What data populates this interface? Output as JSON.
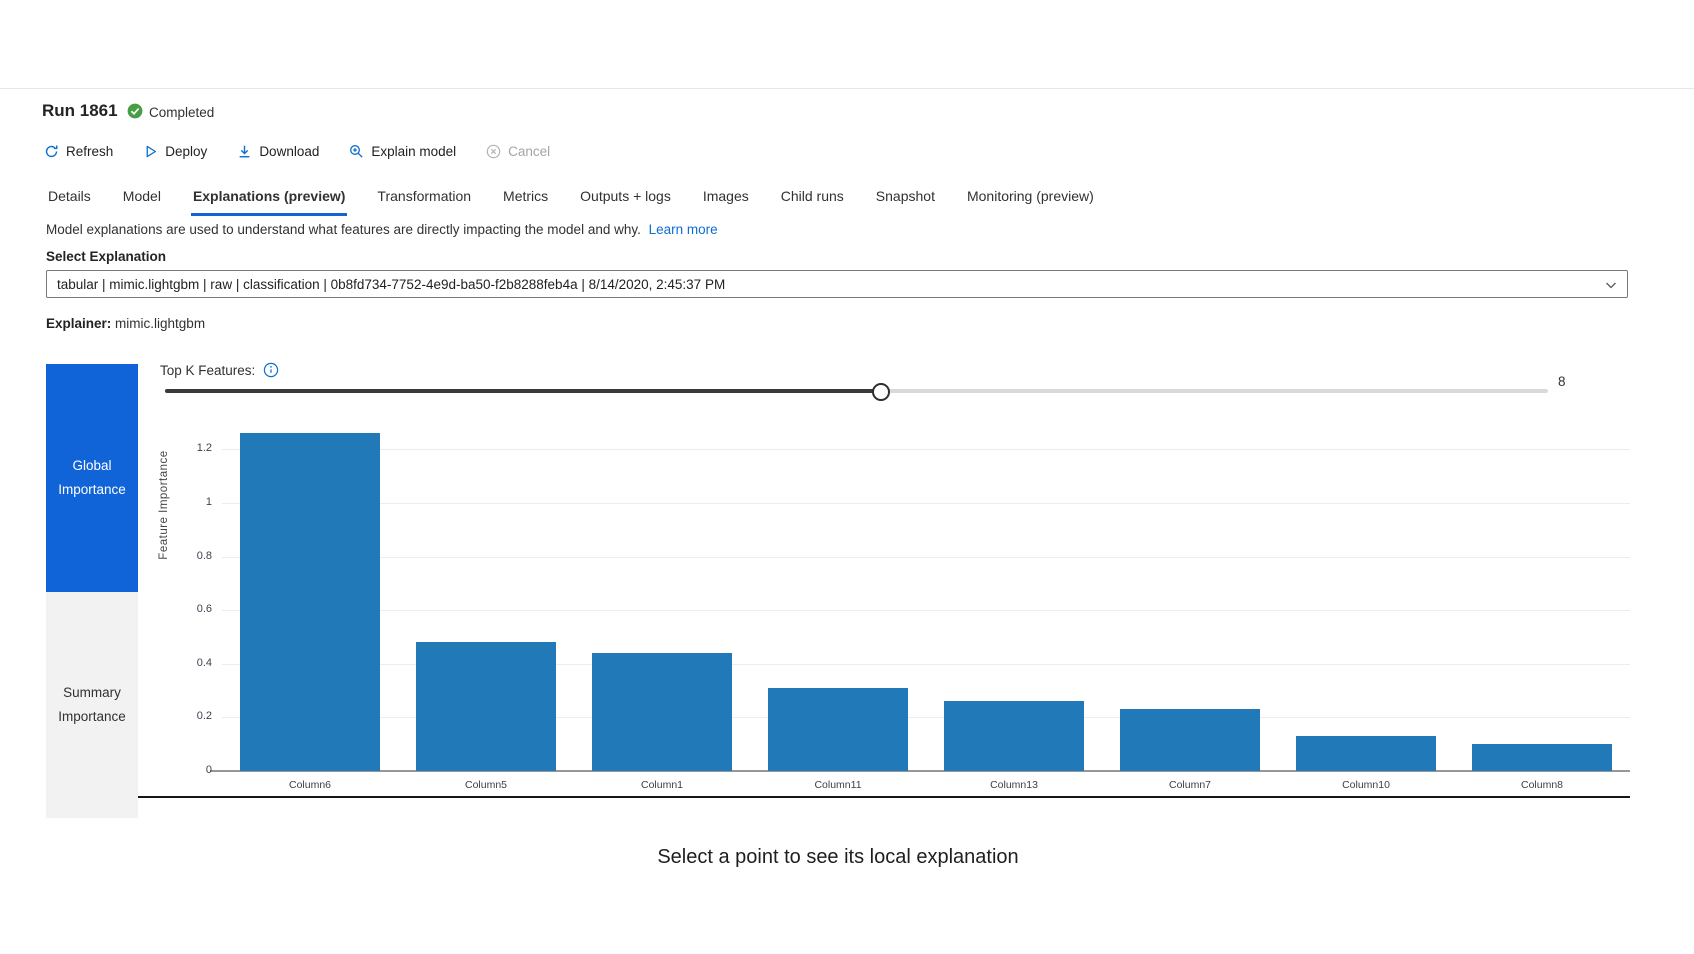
{
  "header": {
    "title": "Run 1861",
    "status": {
      "label": "Completed",
      "icon": "check-circle-icon",
      "color": "#459f45"
    }
  },
  "toolbar": {
    "items": [
      {
        "label": "Refresh",
        "icon": "refresh-icon",
        "enabled": true
      },
      {
        "label": "Deploy",
        "icon": "deploy-icon",
        "enabled": true
      },
      {
        "label": "Download",
        "icon": "download-icon",
        "enabled": true
      },
      {
        "label": "Explain model",
        "icon": "magnifier-plus-icon",
        "enabled": true
      },
      {
        "label": "Cancel",
        "icon": "cancel-icon",
        "enabled": false
      }
    ]
  },
  "tabs": [
    {
      "label": "Details",
      "active": false
    },
    {
      "label": "Model",
      "active": false
    },
    {
      "label": "Explanations (preview)",
      "active": true
    },
    {
      "label": "Transformation",
      "active": false
    },
    {
      "label": "Metrics",
      "active": false
    },
    {
      "label": "Outputs + logs",
      "active": false
    },
    {
      "label": "Images",
      "active": false
    },
    {
      "label": "Child runs",
      "active": false
    },
    {
      "label": "Snapshot",
      "active": false
    },
    {
      "label": "Monitoring (preview)",
      "active": false
    }
  ],
  "explanations": {
    "description": "Model explanations are used to understand what features are directly impacting the model and why.",
    "learn_more": "Learn more",
    "select_label": "Select Explanation",
    "selected_value": "tabular | mimic.lightgbm | raw | classification | 0b8fd734-7752-4e9d-ba50-f2b8288feb4a | 8/14/2020, 2:45:37 PM",
    "explainer_label": "Explainer:",
    "explainer_value": "mimic.lightgbm"
  },
  "importance_panel": {
    "tabs": [
      {
        "label": "Global Importance",
        "active": true
      },
      {
        "label": "Summary Importance",
        "active": false
      }
    ],
    "top_k_label": "Top K Features:",
    "top_k_value": "8"
  },
  "chart_data": {
    "type": "bar",
    "categories": [
      "Column6",
      "Column5",
      "Column1",
      "Column11",
      "Column13",
      "Column7",
      "Column10",
      "Column8"
    ],
    "values": [
      1.26,
      0.48,
      0.44,
      0.31,
      0.26,
      0.23,
      0.13,
      0.1
    ],
    "title": "",
    "xlabel": "",
    "ylabel": "Feature Importance",
    "ylim": [
      0,
      1.37
    ],
    "yticks": [
      0,
      0.2,
      0.4,
      0.6,
      0.8,
      1,
      1.2
    ],
    "ytick_labels": [
      "0",
      "0.2",
      "0.4",
      "0.6",
      "0.8",
      "1",
      "1.2"
    ],
    "grid": true,
    "legend": "none",
    "bar_color": "#2279b8"
  },
  "footer": {
    "message": "Select a point to see its local explanation"
  },
  "colors": {
    "accent_blue": "#0b6fd0",
    "tab_underline_blue": "#1365d0",
    "panel_active_blue": "#1164d8",
    "bar_blue": "#2279b8",
    "status_green": "#459f45",
    "disabled_gray": "#a6a4a2"
  }
}
